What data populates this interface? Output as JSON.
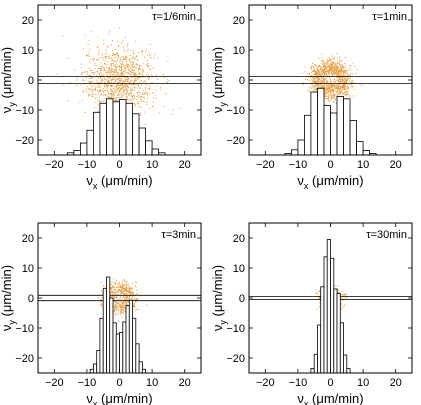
{
  "chart_data": [
    {
      "type": "scatter",
      "annotation": "τ=1/6min",
      "xlabel": "ν",
      "xlabel_sub": "x",
      "xlabel_unit": " (μm/min)",
      "ylabel": "ν",
      "ylabel_sub": "y",
      "ylabel_unit": " (μm/min)",
      "xlim": [
        -25,
        25
      ],
      "ylim": [
        -25,
        25
      ],
      "xticks": [
        -20,
        -10,
        0,
        10,
        20
      ],
      "yticks": [
        -20,
        -10,
        0,
        10,
        20
      ],
      "xtick_labels": [
        "−20",
        "−10",
        "0",
        "10",
        "20"
      ],
      "ytick_labels": [
        "−20",
        "−10",
        "0",
        "10",
        "20"
      ],
      "scatter": {
        "center": [
          0,
          0
        ],
        "spread": 5.5,
        "n": 1100,
        "ring": false
      },
      "band": [
        -1.2,
        1.2
      ],
      "histogram": {
        "bin_width": 2,
        "bins": [
          -15,
          -13,
          -11,
          -9,
          -7,
          -5,
          -3,
          -1,
          1,
          3,
          5,
          7,
          9,
          11,
          13
        ],
        "heights": [
          0.3,
          0.6,
          1.6,
          3.3,
          5.7,
          6.9,
          7.5,
          7.1,
          7.4,
          6.9,
          5.5,
          3.6,
          1.9,
          0.8,
          0.3
        ]
      },
      "grid": false,
      "point_color": "#e89a3c"
    },
    {
      "type": "scatter",
      "annotation": "τ=1min",
      "xlabel": "ν",
      "xlabel_sub": "x",
      "xlabel_unit": " (μm/min)",
      "ylabel": "ν",
      "ylabel_sub": "y",
      "ylabel_unit": " (μm/min)",
      "xlim": [
        -25,
        25
      ],
      "ylim": [
        -25,
        25
      ],
      "xticks": [
        -20,
        -10,
        0,
        10,
        20
      ],
      "yticks": [
        -20,
        -10,
        0,
        10,
        20
      ],
      "xtick_labels": [
        "−20",
        "−10",
        "0",
        "10",
        "20"
      ],
      "ytick_labels": [
        "−20",
        "−10",
        "0",
        "10",
        "20"
      ],
      "scatter": {
        "center": [
          0,
          0
        ],
        "spread": 5.0,
        "n": 1100,
        "ring": true
      },
      "band": [
        -1.2,
        1.2
      ],
      "histogram": {
        "bin_width": 2,
        "bins": [
          -13,
          -11,
          -9,
          -7,
          -5,
          -3,
          -1,
          1,
          3,
          5,
          7,
          9,
          11,
          13
        ],
        "heights": [
          0.2,
          0.7,
          2.0,
          5.3,
          8.4,
          8.9,
          6.6,
          5.6,
          7.8,
          7.5,
          4.6,
          1.8,
          0.6,
          0.2
        ]
      },
      "grid": false,
      "point_color": "#e89a3c"
    },
    {
      "type": "scatter",
      "annotation": "τ=3min",
      "xlabel": "ν",
      "xlabel_sub": "x",
      "xlabel_unit": " (μm/min)",
      "ylabel": "ν",
      "ylabel_sub": "y",
      "ylabel_unit": " (μm/min)",
      "xlim": [
        -25,
        25
      ],
      "ylim": [
        -25,
        25
      ],
      "xticks": [
        -20,
        -10,
        0,
        10,
        20
      ],
      "yticks": [
        -20,
        -10,
        0,
        10,
        20
      ],
      "xtick_labels": [
        "−20",
        "−10",
        "0",
        "10",
        "20"
      ],
      "ytick_labels": [
        "−20",
        "−10",
        "0",
        "10",
        "20"
      ],
      "scatter": {
        "center": [
          0,
          0
        ],
        "spread": 4.2,
        "n": 600,
        "ring": true
      },
      "band": [
        -0.9,
        0.9
      ],
      "histogram": {
        "bin_width": 1,
        "bins": [
          -8.5,
          -7.5,
          -6.5,
          -5.5,
          -4.5,
          -3.5,
          -2.5,
          -1.5,
          -0.5,
          0.5,
          1.5,
          2.5,
          3.5,
          4.5,
          5.5,
          6.5,
          7.5
        ],
        "heights": [
          0.5,
          1.2,
          3.0,
          7.3,
          11.3,
          12.8,
          10.0,
          6.7,
          5.2,
          5.4,
          6.8,
          9.0,
          9.7,
          7.3,
          3.9,
          1.5,
          0.5
        ]
      },
      "grid": false,
      "point_color": "#e89a3c"
    },
    {
      "type": "scatter",
      "annotation": "τ=30min",
      "xlabel": "ν",
      "xlabel_sub": "x",
      "xlabel_unit": " (μm/min)",
      "ylabel": "ν",
      "ylabel_sub": "y",
      "ylabel_unit": " (μm/min)",
      "xlim": [
        -25,
        25
      ],
      "ylim": [
        -25,
        25
      ],
      "xticks": [
        -20,
        -10,
        0,
        10,
        20
      ],
      "yticks": [
        -20,
        -10,
        0,
        10,
        20
      ],
      "xtick_labels": [
        "−20",
        "−10",
        "0",
        "10",
        "20"
      ],
      "ytick_labels": [
        "−20",
        "−10",
        "0",
        "10",
        "20"
      ],
      "scatter": {
        "center": [
          0,
          0
        ],
        "spread": 1.8,
        "n": 450,
        "ring": false
      },
      "band": [
        -0.5,
        0.5
      ],
      "histogram": {
        "bin_width": 1,
        "bins": [
          -5.5,
          -4.5,
          -3.5,
          -2.5,
          -1.5,
          -0.5,
          0.5,
          1.5,
          2.5,
          3.5,
          4.5,
          5.5
        ],
        "heights": [
          0.6,
          2.5,
          6.4,
          11.5,
          15.5,
          17.8,
          15.3,
          11.2,
          10.6,
          6.7,
          2.4,
          0.6
        ]
      },
      "grid": false,
      "point_color": "#e89a3c"
    }
  ]
}
